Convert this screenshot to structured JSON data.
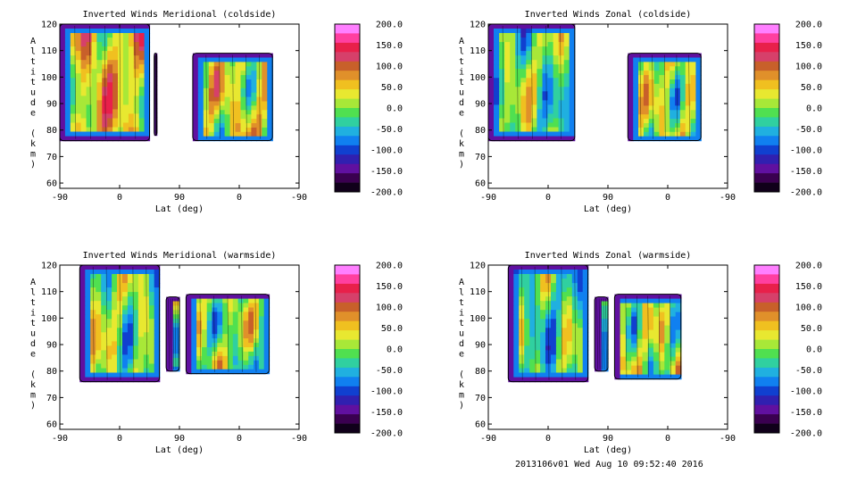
{
  "colorbar": {
    "labels": [
      "200.0",
      "150.0",
      "100.0",
      "50.0",
      "0.0",
      "-50.0",
      "-100.0",
      "-150.0",
      "-200.0"
    ],
    "colors": [
      "#ff7fff",
      "#ff3fa0",
      "#e8204a",
      "#d6406a",
      "#c8602a",
      "#e0902a",
      "#f0c020",
      "#e8e830",
      "#a8e838",
      "#50e050",
      "#30d0a0",
      "#20b0e0",
      "#1080f0",
      "#1040d0",
      "#3020b0",
      "#6010a0",
      "#3a0050",
      "#10001a"
    ]
  },
  "chart_data": [
    {
      "type": "heatmap",
      "title": "Inverted Winds Meridional (coldside)",
      "xlabel": "Lat (deg)",
      "ylabel": "Altitude (km)",
      "xticks": [
        "-90",
        "0",
        "90",
        "0",
        "-90"
      ],
      "yticks": [
        60,
        70,
        80,
        90,
        100,
        110,
        120
      ],
      "ylim": [
        58,
        120
      ],
      "zlim": [
        -200,
        200
      ],
      "blocks": [
        {
          "lat_from": -90,
          "lat_to": 45,
          "alt_low": 76,
          "alt_high": 120,
          "mean": 45
        },
        {
          "lat_from": 52,
          "lat_to": 56,
          "alt_low": 78,
          "alt_high": 109,
          "mean": -120
        },
        {
          "lat_from": 110,
          "lat_to": 230,
          "alt_low": 76,
          "alt_high": 109,
          "mean": 25
        }
      ]
    },
    {
      "type": "heatmap",
      "title": "Inverted Winds Zonal (coldside)",
      "xlabel": "Lat (deg)",
      "ylabel": "Altitude (km)",
      "xticks": [
        "-90",
        "0",
        "90",
        "0",
        "-90"
      ],
      "yticks": [
        60,
        70,
        80,
        90,
        100,
        110,
        120
      ],
      "ylim": [
        58,
        120
      ],
      "zlim": [
        -200,
        200
      ],
      "blocks": [
        {
          "lat_from": -90,
          "lat_to": 40,
          "alt_low": 76,
          "alt_high": 120,
          "mean": -10
        },
        {
          "lat_from": 120,
          "lat_to": 230,
          "alt_low": 76,
          "alt_high": 109,
          "mean": 10
        }
      ]
    },
    {
      "type": "heatmap",
      "title": "Inverted Winds Meridional (warmside)",
      "xlabel": "Lat (deg)",
      "ylabel": "Altitude (km)",
      "xticks": [
        "-90",
        "0",
        "90",
        "0",
        "-90"
      ],
      "yticks": [
        60,
        70,
        80,
        90,
        100,
        110,
        120
      ],
      "ylim": [
        58,
        120
      ],
      "zlim": [
        -200,
        200
      ],
      "blocks": [
        {
          "lat_from": -60,
          "lat_to": 60,
          "alt_low": 76,
          "alt_high": 120,
          "mean": 0
        },
        {
          "lat_from": 70,
          "lat_to": 90,
          "alt_low": 80,
          "alt_high": 108,
          "mean": -20
        },
        {
          "lat_from": 100,
          "lat_to": 225,
          "alt_low": 79,
          "alt_high": 109,
          "mean": 0
        }
      ]
    },
    {
      "type": "heatmap",
      "title": "Inverted Winds Zonal (warmside)",
      "xlabel": "Lat (deg)",
      "ylabel": "Altitude (km)",
      "xticks": [
        "-90",
        "0",
        "90",
        "0",
        "-90"
      ],
      "yticks": [
        60,
        70,
        80,
        90,
        100,
        110,
        120
      ],
      "ylim": [
        58,
        120
      ],
      "zlim": [
        -200,
        200
      ],
      "blocks": [
        {
          "lat_from": -60,
          "lat_to": 60,
          "alt_low": 76,
          "alt_high": 120,
          "mean": -20
        },
        {
          "lat_from": 70,
          "lat_to": 90,
          "alt_low": 80,
          "alt_high": 108,
          "mean": -40
        },
        {
          "lat_from": 100,
          "lat_to": 200,
          "alt_low": 77,
          "alt_high": 109,
          "mean": 5
        }
      ]
    }
  ],
  "footer": "2013106v01 Wed Aug 10 09:52:40 2016"
}
